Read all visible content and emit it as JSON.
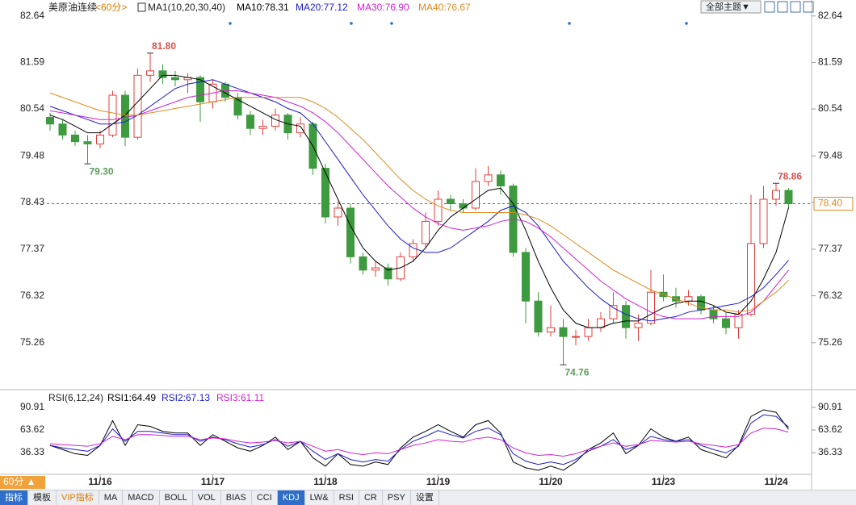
{
  "ui": {
    "symbol": "美原油连续",
    "period": "<60分>",
    "theme_button": "全部主题▼",
    "period_button": "60分 ▲",
    "tabs": [
      "指标",
      "模板",
      "VIP指标",
      "MA",
      "MACD",
      "BOLL",
      "VOL",
      "BIAS",
      "CCI",
      "KDJ",
      "LW&",
      "RSI",
      "CR",
      "PSY",
      "设置"
    ],
    "active_tabs": [
      0,
      9
    ],
    "vip_tab": 2
  },
  "chart_data": [
    {
      "type": "candlestick",
      "title": "MA1(10,20,30,40)",
      "up_color": "#e0403c",
      "down_color": "#3e9a3e",
      "categories": [
        null,
        null,
        null,
        null,
        "11/16",
        null,
        null,
        null,
        null,
        null,
        null,
        null,
        null,
        "11/17",
        null,
        null,
        null,
        null,
        null,
        null,
        null,
        null,
        "11/18",
        null,
        null,
        null,
        null,
        null,
        null,
        null,
        null,
        "11/19",
        null,
        null,
        null,
        null,
        null,
        null,
        null,
        null,
        "11/20",
        null,
        null,
        null,
        null,
        null,
        null,
        null,
        null,
        "11/23",
        null,
        null,
        null,
        null,
        null,
        null,
        null,
        null,
        "11/24",
        null
      ],
      "open": [
        80.35,
        80.2,
        79.95,
        79.8,
        79.75,
        79.95,
        80.85,
        79.9,
        81.3,
        81.4,
        81.25,
        81.2,
        81.25,
        80.7,
        81.1,
        80.8,
        80.4,
        80.1,
        80.15,
        80.4,
        80.0,
        80.2,
        79.2,
        78.1,
        78.3,
        77.2,
        76.9,
        76.95,
        76.7,
        77.2,
        77.5,
        78.0,
        78.5,
        78.4,
        78.3,
        78.9,
        79.05,
        78.8,
        77.3,
        76.2,
        75.5,
        75.6,
        75.4,
        75.4,
        75.6,
        75.8,
        76.1,
        75.6,
        75.7,
        76.4,
        76.3,
        76.2,
        76.3,
        76.0,
        75.8,
        75.6,
        75.9,
        77.5,
        78.5,
        78.7
      ],
      "high": [
        80.45,
        80.3,
        80.05,
        79.95,
        80.05,
        80.95,
        80.95,
        81.45,
        81.8,
        81.55,
        81.4,
        81.35,
        81.3,
        81.2,
        81.15,
        80.9,
        80.5,
        80.3,
        80.55,
        80.45,
        80.35,
        80.25,
        79.3,
        78.45,
        78.4,
        77.3,
        77.1,
        77.05,
        77.3,
        77.6,
        78.2,
        78.7,
        78.6,
        78.5,
        79.2,
        79.25,
        79.15,
        78.85,
        77.4,
        76.4,
        76.1,
        75.8,
        75.55,
        75.8,
        75.95,
        76.4,
        76.2,
        75.9,
        76.9,
        76.8,
        76.5,
        76.45,
        76.35,
        76.1,
        75.95,
        76.0,
        78.6,
        78.8,
        78.86,
        78.75
      ],
      "low": [
        80.05,
        79.85,
        79.7,
        79.3,
        79.65,
        79.9,
        79.7,
        79.85,
        81.15,
        81.1,
        81.05,
        80.9,
        80.25,
        80.55,
        80.7,
        80.3,
        79.95,
        79.95,
        80.05,
        79.85,
        79.9,
        79.05,
        77.95,
        77.9,
        77.05,
        76.8,
        76.75,
        76.55,
        76.65,
        77.1,
        77.4,
        77.9,
        78.25,
        78.2,
        78.25,
        78.8,
        78.6,
        77.2,
        75.7,
        75.4,
        75.4,
        74.76,
        75.2,
        75.3,
        75.5,
        75.7,
        75.35,
        75.3,
        75.65,
        76.2,
        76.05,
        76.1,
        75.9,
        75.7,
        75.45,
        75.35,
        75.85,
        77.4,
        78.35,
        78.3
      ],
      "close": [
        80.2,
        79.95,
        79.8,
        79.75,
        79.95,
        80.85,
        79.9,
        81.3,
        81.4,
        81.25,
        81.2,
        81.25,
        80.7,
        81.1,
        80.8,
        80.4,
        80.1,
        80.15,
        80.4,
        80.0,
        80.2,
        79.2,
        78.1,
        78.3,
        77.2,
        76.9,
        76.95,
        76.7,
        77.2,
        77.5,
        78.0,
        78.5,
        78.4,
        78.3,
        78.9,
        79.05,
        78.8,
        77.3,
        76.2,
        75.5,
        75.6,
        75.4,
        75.4,
        75.6,
        75.8,
        76.1,
        75.6,
        75.7,
        76.4,
        76.3,
        76.2,
        76.3,
        76.0,
        75.8,
        75.6,
        75.9,
        77.5,
        78.5,
        78.7,
        78.4
      ],
      "series": [
        {
          "name": "MA10",
          "legend_label": "MA10:78.31",
          "color": "#000000",
          "values": [
            80.4,
            80.3,
            80.15,
            80.0,
            80.0,
            80.2,
            80.4,
            80.7,
            81.0,
            81.3,
            81.3,
            81.25,
            81.2,
            81.05,
            80.9,
            80.75,
            80.6,
            80.45,
            80.3,
            80.2,
            80.15,
            79.7,
            79.1,
            78.5,
            77.9,
            77.4,
            77.1,
            76.9,
            76.95,
            77.1,
            77.4,
            77.8,
            78.1,
            78.3,
            78.5,
            78.7,
            78.75,
            78.4,
            77.8,
            77.1,
            76.5,
            76.0,
            75.7,
            75.6,
            75.6,
            75.7,
            75.75,
            75.75,
            75.9,
            76.05,
            76.15,
            76.2,
            76.2,
            76.1,
            75.95,
            75.9,
            76.2,
            76.7,
            77.3,
            78.31
          ]
        },
        {
          "name": "MA20",
          "legend_label": "MA20:77.12",
          "color": "#1a1acc",
          "values": [
            80.6,
            80.5,
            80.4,
            80.3,
            80.2,
            80.2,
            80.25,
            80.4,
            80.6,
            80.8,
            81.0,
            81.1,
            81.15,
            81.2,
            81.1,
            81.0,
            80.9,
            80.8,
            80.7,
            80.55,
            80.45,
            80.2,
            79.8,
            79.4,
            79.0,
            78.6,
            78.25,
            77.9,
            77.6,
            77.4,
            77.3,
            77.3,
            77.4,
            77.6,
            77.8,
            78.0,
            78.25,
            78.35,
            78.2,
            77.9,
            77.5,
            77.1,
            76.8,
            76.5,
            76.25,
            76.05,
            75.9,
            75.8,
            75.75,
            75.8,
            75.85,
            75.95,
            76.0,
            76.05,
            76.1,
            76.15,
            76.3,
            76.5,
            76.8,
            77.12
          ]
        },
        {
          "name": "MA30",
          "legend_label": "MA30:76.90",
          "color": "#d020d0",
          "values": [
            80.5,
            80.45,
            80.4,
            80.35,
            80.3,
            80.3,
            80.35,
            80.4,
            80.5,
            80.6,
            80.7,
            80.8,
            80.85,
            80.9,
            80.95,
            80.95,
            80.9,
            80.85,
            80.8,
            80.7,
            80.6,
            80.45,
            80.25,
            80.0,
            79.7,
            79.4,
            79.1,
            78.8,
            78.55,
            78.3,
            78.1,
            77.95,
            77.85,
            77.8,
            77.85,
            77.9,
            78.0,
            78.05,
            78.0,
            77.85,
            77.65,
            77.4,
            77.15,
            76.9,
            76.65,
            76.45,
            76.25,
            76.1,
            75.95,
            75.85,
            75.8,
            75.8,
            75.8,
            75.85,
            75.85,
            75.85,
            75.95,
            76.2,
            76.55,
            76.9
          ]
        },
        {
          "name": "MA40",
          "legend_label": "MA40:76.67",
          "color": "#e08a1e",
          "values": [
            80.9,
            80.8,
            80.7,
            80.6,
            80.5,
            80.45,
            80.4,
            80.4,
            80.45,
            80.5,
            80.55,
            80.6,
            80.65,
            80.7,
            80.75,
            80.8,
            80.8,
            80.8,
            80.8,
            80.8,
            80.8,
            80.7,
            80.55,
            80.35,
            80.1,
            79.85,
            79.55,
            79.25,
            78.95,
            78.7,
            78.5,
            78.35,
            78.25,
            78.2,
            78.2,
            78.2,
            78.2,
            78.2,
            78.15,
            78.05,
            77.9,
            77.7,
            77.5,
            77.3,
            77.1,
            76.9,
            76.75,
            76.6,
            76.45,
            76.35,
            76.25,
            76.15,
            76.05,
            76.0,
            76.0,
            75.95,
            76.0,
            76.2,
            76.4,
            76.67
          ]
        }
      ],
      "ylim": [
        74.4,
        82.8
      ],
      "yticks": [
        82.64,
        81.59,
        80.54,
        79.48,
        78.43,
        77.37,
        76.32,
        75.26
      ],
      "last_price": {
        "value": 78.4,
        "label": "78.40"
      },
      "annotations": [
        {
          "candle": 8,
          "value": 81.8,
          "label": "81.80",
          "color": "#d9534f",
          "side": "above"
        },
        {
          "candle": 3,
          "value": 79.3,
          "label": "79.30",
          "color": "#5a9e5a",
          "side": "below"
        },
        {
          "candle": 41,
          "value": 74.76,
          "label": "74.76",
          "color": "#5a9e5a",
          "side": "below"
        },
        {
          "candle": 58,
          "value": 78.86,
          "label": "78.86",
          "color": "#d9534f",
          "side": "above"
        }
      ]
    },
    {
      "type": "line",
      "title": "RSI(6,12,24)",
      "series": [
        {
          "name": "RSI1",
          "legend_label": "RSI1:64.49",
          "color": "#000000",
          "values": [
            45,
            40,
            35,
            33,
            45,
            75,
            45,
            70,
            68,
            62,
            60,
            60,
            45,
            58,
            50,
            42,
            38,
            45,
            55,
            40,
            50,
            30,
            20,
            35,
            22,
            20,
            25,
            22,
            42,
            55,
            62,
            70,
            62,
            55,
            70,
            75,
            60,
            25,
            18,
            15,
            20,
            15,
            25,
            40,
            48,
            60,
            35,
            45,
            65,
            55,
            50,
            55,
            40,
            35,
            30,
            45,
            80,
            88,
            85,
            64.49
          ]
        },
        {
          "name": "RSI2",
          "legend_label": "RSI2:67.13",
          "color": "#1a1acc",
          "values": [
            45,
            42,
            40,
            38,
            45,
            65,
            50,
            62,
            62,
            60,
            58,
            58,
            50,
            55,
            52,
            47,
            43,
            46,
            52,
            44,
            50,
            38,
            28,
            35,
            28,
            25,
            28,
            26,
            40,
            50,
            56,
            63,
            58,
            54,
            62,
            66,
            58,
            35,
            26,
            22,
            25,
            22,
            28,
            38,
            44,
            52,
            40,
            45,
            56,
            52,
            50,
            52,
            45,
            40,
            36,
            44,
            72,
            82,
            80,
            67.13
          ]
        },
        {
          "name": "RSI3",
          "legend_label": "RSI3:61.11",
          "color": "#d020d0",
          "values": [
            47,
            46,
            45,
            44,
            47,
            56,
            52,
            58,
            58,
            57,
            56,
            56,
            52,
            54,
            53,
            50,
            48,
            49,
            51,
            48,
            50,
            44,
            38,
            40,
            36,
            34,
            36,
            35,
            40,
            45,
            48,
            52,
            50,
            49,
            53,
            55,
            52,
            42,
            36,
            33,
            34,
            32,
            35,
            40,
            44,
            48,
            44,
            46,
            51,
            50,
            49,
            50,
            47,
            45,
            43,
            46,
            60,
            66,
            65,
            61.11
          ]
        }
      ],
      "ylim": [
        13,
        107.5
      ],
      "yticks": [
        90.91,
        63.62,
        36.33
      ]
    }
  ]
}
